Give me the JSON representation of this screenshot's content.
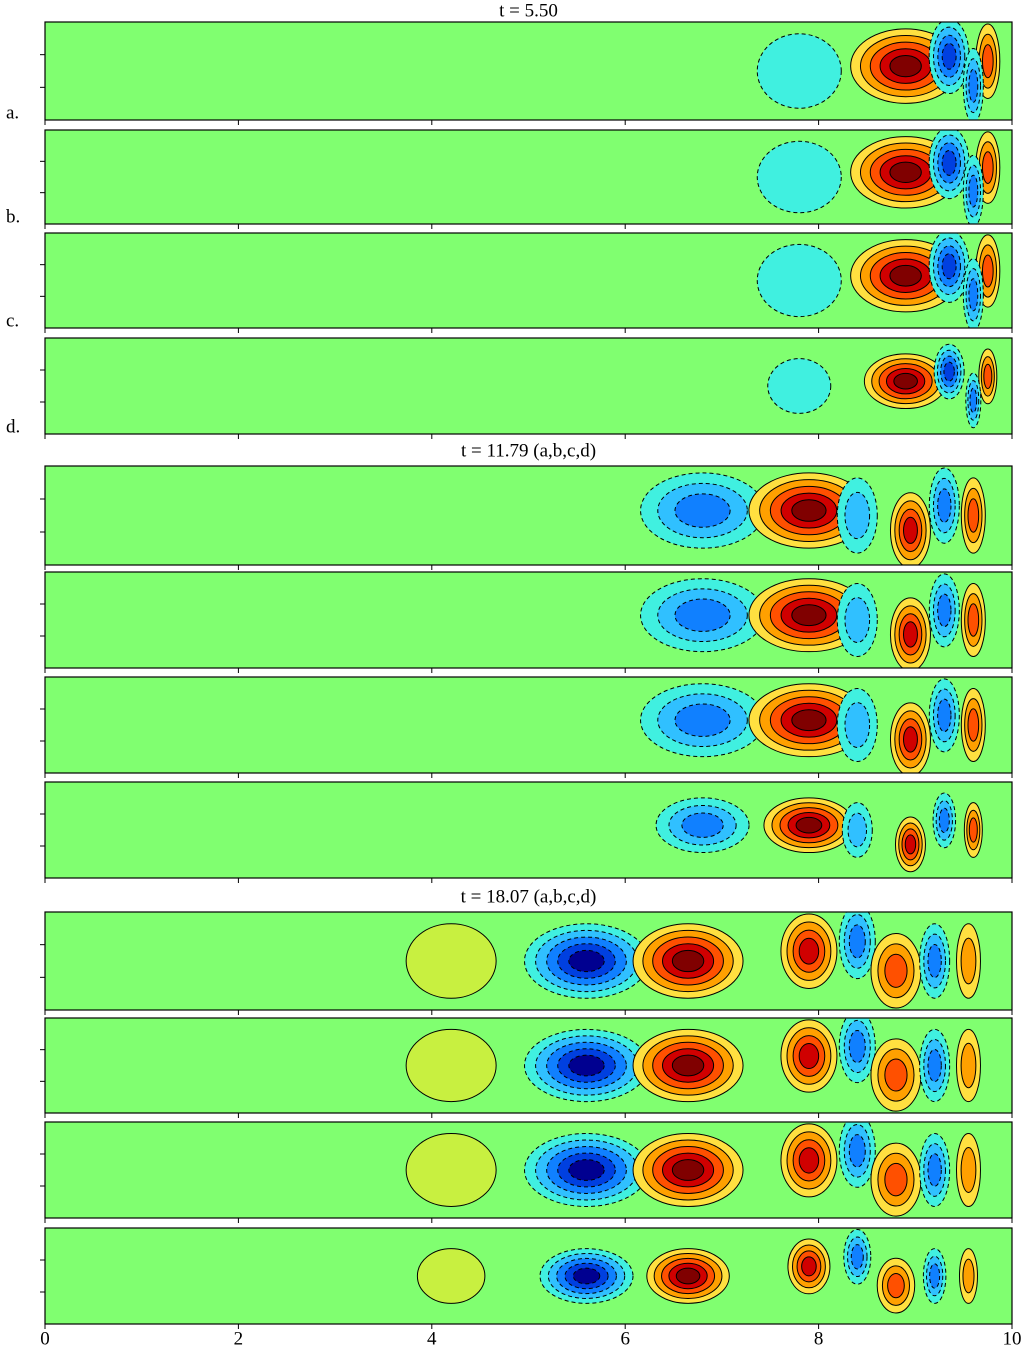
{
  "chart_data": {
    "type": "contour",
    "xlim": [
      0,
      10
    ],
    "xticks": [
      0,
      2,
      4,
      6,
      8,
      10
    ],
    "panel_labels": [
      "a.",
      "b.",
      "c.",
      "d."
    ],
    "groups": [
      {
        "title": "t = 5.50"
      },
      {
        "title": "t = 11.79 (a,b,c,d)"
      },
      {
        "title": "t = 18.07 (a,b,c,d)"
      }
    ]
  }
}
